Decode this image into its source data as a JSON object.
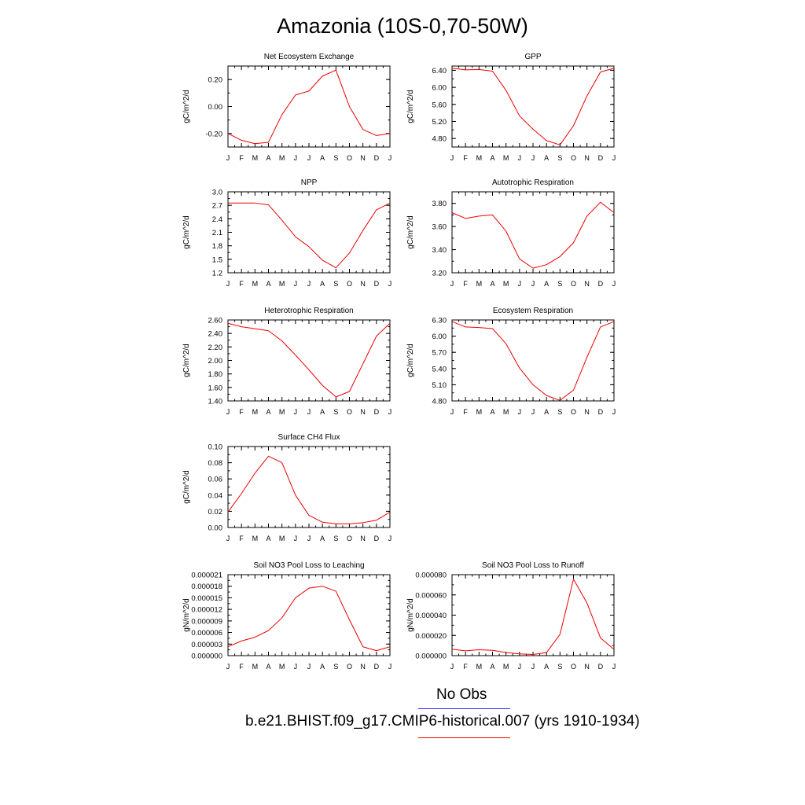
{
  "title": "Amazonia (10S-0,70-50W)",
  "months": [
    "J",
    "F",
    "M",
    "A",
    "M",
    "J",
    "J",
    "A",
    "S",
    "O",
    "N",
    "D",
    "J"
  ],
  "colors": {
    "model": "#ee0000",
    "obs": "#3333ff",
    "axis": "#000000"
  },
  "legend": {
    "obs_label": "No Obs",
    "model_label": "b.e21.BHIST.f09_g17.CMIP6-historical.007 (yrs 1910-1934)"
  },
  "chart_data": [
    {
      "type": "line",
      "title": "Net Ecosystem Exchange",
      "ylabel": "gC/m^2/d",
      "ylim": [
        -0.3,
        0.3
      ],
      "yticks": [
        -0.2,
        0.0,
        0.2
      ],
      "ytick_labels": [
        "-0.20",
        "0.00",
        "0.20"
      ],
      "categories": [
        "J",
        "F",
        "M",
        "A",
        "M",
        "J",
        "J",
        "A",
        "S",
        "O",
        "N",
        "D",
        "J"
      ],
      "series": [
        {
          "values": [
            -0.2,
            -0.25,
            -0.275,
            -0.265,
            -0.06,
            0.085,
            0.115,
            0.225,
            0.27,
            0.0,
            -0.17,
            -0.215,
            -0.2
          ]
        }
      ]
    },
    {
      "type": "line",
      "title": "GPP",
      "ylabel": "gC/m^2/d",
      "ylim": [
        4.6,
        6.5
      ],
      "yticks": [
        4.8,
        5.2,
        5.6,
        6.0,
        6.4
      ],
      "ytick_labels": [
        "4.80",
        "5.20",
        "5.60",
        "6.00",
        "6.40"
      ],
      "categories": [
        "J",
        "F",
        "M",
        "A",
        "M",
        "J",
        "J",
        "A",
        "S",
        "O",
        "N",
        "D",
        "J"
      ],
      "series": [
        {
          "values": [
            6.45,
            6.41,
            6.42,
            6.38,
            5.93,
            5.33,
            5.02,
            4.75,
            4.65,
            5.1,
            5.8,
            6.36,
            6.45
          ]
        }
      ]
    },
    {
      "type": "line",
      "title": "NPP",
      "ylabel": "gC/m^2/d",
      "ylim": [
        1.2,
        3.0
      ],
      "yticks": [
        1.2,
        1.5,
        1.8,
        2.1,
        2.4,
        2.7,
        3.0
      ],
      "ytick_labels": [
        "1.2",
        "1.5",
        "1.8",
        "2.1",
        "2.4",
        "2.7",
        "3.0"
      ],
      "categories": [
        "J",
        "F",
        "M",
        "A",
        "M",
        "J",
        "J",
        "A",
        "S",
        "O",
        "N",
        "D",
        "J"
      ],
      "series": [
        {
          "values": [
            2.75,
            2.75,
            2.75,
            2.71,
            2.37,
            2.0,
            1.78,
            1.48,
            1.31,
            1.64,
            2.14,
            2.6,
            2.75
          ]
        }
      ]
    },
    {
      "type": "line",
      "title": "Autotrophic Respiration",
      "ylabel": "gC/m^2/d",
      "ylim": [
        3.2,
        3.9
      ],
      "yticks": [
        3.2,
        3.4,
        3.6,
        3.8
      ],
      "ytick_labels": [
        "3.20",
        "3.40",
        "3.60",
        "3.80"
      ],
      "categories": [
        "J",
        "F",
        "M",
        "A",
        "M",
        "J",
        "J",
        "A",
        "S",
        "O",
        "N",
        "D",
        "J"
      ],
      "series": [
        {
          "values": [
            3.72,
            3.67,
            3.69,
            3.7,
            3.56,
            3.32,
            3.24,
            3.27,
            3.34,
            3.46,
            3.69,
            3.81,
            3.72
          ]
        }
      ]
    },
    {
      "type": "line",
      "title": "Heterotrophic Respiration",
      "ylabel": "gC/m^2/d",
      "ylim": [
        1.4,
        2.6
      ],
      "yticks": [
        1.4,
        1.6,
        1.8,
        2.0,
        2.2,
        2.4,
        2.6
      ],
      "ytick_labels": [
        "1.40",
        "1.60",
        "1.80",
        "2.00",
        "2.20",
        "2.40",
        "2.60"
      ],
      "categories": [
        "J",
        "F",
        "M",
        "A",
        "M",
        "J",
        "J",
        "A",
        "S",
        "O",
        "N",
        "D",
        "J"
      ],
      "series": [
        {
          "values": [
            2.55,
            2.5,
            2.47,
            2.44,
            2.29,
            2.08,
            1.86,
            1.63,
            1.46,
            1.54,
            1.95,
            2.36,
            2.55
          ]
        }
      ]
    },
    {
      "type": "line",
      "title": "Ecosystem Respiration",
      "ylabel": "gC/m^2/d",
      "ylim": [
        4.8,
        6.3
      ],
      "yticks": [
        4.8,
        5.1,
        5.4,
        5.7,
        6.0,
        6.3
      ],
      "ytick_labels": [
        "4.80",
        "5.10",
        "5.40",
        "5.70",
        "6.00",
        "6.30"
      ],
      "categories": [
        "J",
        "F",
        "M",
        "A",
        "M",
        "J",
        "J",
        "A",
        "S",
        "O",
        "N",
        "D",
        "J"
      ],
      "series": [
        {
          "values": [
            6.27,
            6.17,
            6.16,
            6.14,
            5.86,
            5.41,
            5.1,
            4.9,
            4.81,
            5.0,
            5.61,
            6.17,
            6.27
          ]
        }
      ]
    },
    {
      "type": "line",
      "title": "Surface CH4 Flux",
      "ylabel": "gC/m^2/d",
      "ylim": [
        0.0,
        0.1
      ],
      "yticks": [
        0.0,
        0.02,
        0.04,
        0.06,
        0.08,
        0.1
      ],
      "ytick_labels": [
        "0.00",
        "0.02",
        "0.04",
        "0.06",
        "0.08",
        "0.10"
      ],
      "categories": [
        "J",
        "F",
        "M",
        "A",
        "M",
        "J",
        "J",
        "A",
        "S",
        "O",
        "N",
        "D",
        "J"
      ],
      "series": [
        {
          "values": [
            0.019,
            0.042,
            0.067,
            0.088,
            0.08,
            0.04,
            0.015,
            0.0065,
            0.0045,
            0.0045,
            0.006,
            0.009,
            0.019
          ]
        }
      ]
    },
    null,
    {
      "type": "line",
      "title": "Soil NO3 Pool Loss to Leaching",
      "ylabel": "gN/m^2/d",
      "ylim": [
        0.0,
        2.1e-05
      ],
      "yticks": [
        0.0,
        3e-06,
        6e-06,
        9e-06,
        1.2e-05,
        1.5e-05,
        1.8e-05,
        2.1e-05
      ],
      "ytick_labels": [
        "0.000000",
        "0.000003",
        "0.000006",
        "0.000009",
        "0.000012",
        "0.000015",
        "0.000018",
        "0.000021"
      ],
      "categories": [
        "J",
        "F",
        "M",
        "A",
        "M",
        "J",
        "J",
        "A",
        "S",
        "O",
        "N",
        "D",
        "J"
      ],
      "series": [
        {
          "values": [
            2.3e-06,
            3.8e-06,
            4.8e-06,
            6.5e-06,
            9.8e-06,
            1.5e-05,
            1.75e-05,
            1.8e-05,
            1.67e-05,
            9.3e-06,
            2.3e-06,
            1.3e-06,
            2.3e-06
          ]
        }
      ]
    },
    {
      "type": "line",
      "title": "Soil NO3 Pool Loss to Runoff",
      "ylabel": "gN/m^2/d",
      "ylim": [
        0.0,
        8e-05
      ],
      "yticks": [
        0.0,
        2e-05,
        4e-05,
        6e-05,
        8e-05
      ],
      "ytick_labels": [
        "0.000000",
        "0.000020",
        "0.000040",
        "0.000060",
        "0.000080"
      ],
      "categories": [
        "J",
        "F",
        "M",
        "A",
        "M",
        "J",
        "J",
        "A",
        "S",
        "O",
        "N",
        "D",
        "J"
      ],
      "series": [
        {
          "values": [
            6.3e-06,
            4.8e-06,
            5.8e-06,
            5.2e-06,
            3.1e-06,
            1.7e-06,
            1.2e-06,
            3e-06,
            2.1e-05,
            7.55e-05,
            5.2e-05,
            1.75e-05,
            6.2e-06
          ]
        }
      ]
    }
  ]
}
